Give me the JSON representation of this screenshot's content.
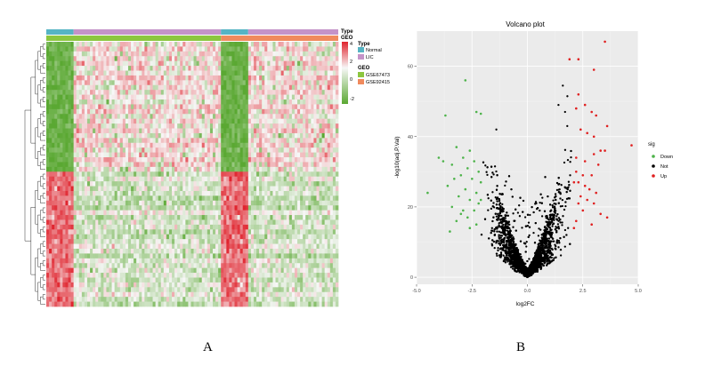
{
  "figure_labels": {
    "a": "A",
    "b": "B"
  },
  "colors": {
    "normal": "#56b4c4",
    "lic": "#c493c8",
    "gse67473": "#8cc63f",
    "gse92415": "#f08a5d",
    "heat_high": "#e0242e",
    "heat_mid": "#f7f7f7",
    "heat_low": "#5aa832",
    "panel_bg": "#ebebeb",
    "down": "#4db34a",
    "not": "#000000",
    "up": "#e02020"
  },
  "chart_data": [
    {
      "type": "heatmap",
      "annotation_tracks": [
        "Type",
        "GEO"
      ],
      "legend": {
        "scale_ticks": [
          4,
          2,
          0,
          -2
        ],
        "groups": [
          {
            "title": "Type",
            "entries": [
              "Normal",
              "LIC"
            ]
          },
          {
            "title": "GEO",
            "entries": [
              "GSE67473",
              "GSE92415"
            ]
          }
        ]
      },
      "columns": {
        "type_blocks": [
          {
            "label": "Normal",
            "count": 10
          },
          {
            "label": "LIC",
            "count": 54
          },
          {
            "label": "Normal",
            "count": 10
          },
          {
            "label": "LIC",
            "count": 33
          }
        ],
        "geo_blocks": [
          {
            "label": "GSE67473",
            "count": 64
          },
          {
            "label": "GSE92415",
            "count": 43
          }
        ]
      },
      "rows": {
        "upregulated_in_lic": 27,
        "downregulated_in_lic": 28
      },
      "value_range": [
        -3,
        4.5
      ]
    },
    {
      "type": "scatter",
      "title": "Volcano plot",
      "xlabel": "log2FC",
      "ylabel": "-log10(adj.P.Val)",
      "xlim": [
        -5.0,
        5.0
      ],
      "ylim": [
        -2,
        70
      ],
      "xticks": [
        "-5.0",
        "-2.5",
        "0.0",
        "2.5",
        "5.0"
      ],
      "yticks": [
        "0",
        "20",
        "40",
        "60"
      ],
      "legend_title": "sig",
      "legend": [
        "Down",
        "Not",
        "Up"
      ],
      "thresholds": {
        "log2fc": 2,
        "min_y": 13
      },
      "not_point_count": 3200,
      "up_points": [
        [
          3.5,
          67
        ],
        [
          2.3,
          62
        ],
        [
          1.9,
          62
        ],
        [
          3.0,
          59
        ],
        [
          2.3,
          52
        ],
        [
          2.6,
          49
        ],
        [
          2.2,
          48
        ],
        [
          2.9,
          47
        ],
        [
          3.1,
          46
        ],
        [
          3.6,
          43
        ],
        [
          2.4,
          42
        ],
        [
          2.7,
          41
        ],
        [
          3.0,
          40
        ],
        [
          4.7,
          37.5
        ],
        [
          3.3,
          36
        ],
        [
          3.0,
          35
        ],
        [
          3.5,
          36
        ],
        [
          2.2,
          34
        ],
        [
          2.6,
          33
        ],
        [
          3.2,
          32
        ],
        [
          2.2,
          30
        ],
        [
          2.5,
          29
        ],
        [
          2.9,
          29
        ],
        [
          2.1,
          27
        ],
        [
          2.3,
          27
        ],
        [
          2.6,
          26
        ],
        [
          2.8,
          25
        ],
        [
          3.1,
          24
        ],
        [
          2.4,
          23
        ],
        [
          2.7,
          22
        ],
        [
          2.3,
          21
        ],
        [
          3.0,
          21
        ],
        [
          2.5,
          19
        ],
        [
          3.6,
          17
        ],
        [
          2.2,
          16
        ],
        [
          2.9,
          15
        ],
        [
          2.1,
          14
        ],
        [
          3.3,
          18
        ]
      ],
      "down_points": [
        [
          -2.8,
          56
        ],
        [
          -3.7,
          46
        ],
        [
          -2.3,
          47
        ],
        [
          -2.1,
          46.5
        ],
        [
          -3.2,
          37
        ],
        [
          -2.6,
          36
        ],
        [
          -2.9,
          34
        ],
        [
          -4.0,
          34
        ],
        [
          -3.8,
          33
        ],
        [
          -2.4,
          33
        ],
        [
          -3.4,
          32
        ],
        [
          -2.7,
          31
        ],
        [
          -2.2,
          30
        ],
        [
          -3.0,
          29
        ],
        [
          -2.5,
          28
        ],
        [
          -3.3,
          28
        ],
        [
          -2.1,
          27
        ],
        [
          -3.6,
          26
        ],
        [
          -2.8,
          25
        ],
        [
          -2.3,
          24
        ],
        [
          -4.5,
          24
        ],
        [
          -3.1,
          23
        ],
        [
          -2.6,
          22
        ],
        [
          -2.2,
          21
        ],
        [
          -3.4,
          20
        ],
        [
          -2.9,
          19
        ],
        [
          -2.4,
          19
        ],
        [
          -3.0,
          18
        ],
        [
          -2.7,
          17
        ],
        [
          -3.2,
          16
        ],
        [
          -2.3,
          15
        ],
        [
          -2.6,
          14
        ],
        [
          -3.5,
          13
        ],
        [
          -2.1,
          22
        ]
      ]
    }
  ]
}
